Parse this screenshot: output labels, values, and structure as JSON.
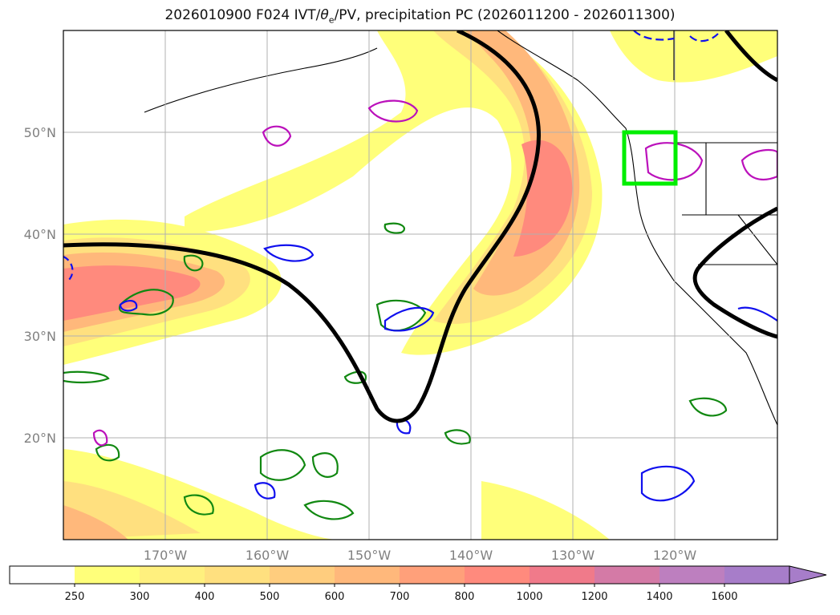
{
  "title": {
    "prefix": "2026010900 F024 IVT/",
    "theta": "θ",
    "theta_sub": "e",
    "suffix": "/PV, precipitation PC (2026011200 - 2026011300)"
  },
  "map": {
    "projection": "lat-lon",
    "lon_range": [
      -180,
      -110
    ],
    "lat_range": [
      10,
      60
    ],
    "lon_ticks": [
      "170°W",
      "160°W",
      "150°W",
      "140°W",
      "130°W",
      "120°W"
    ],
    "lat_ticks": [
      "50°N",
      "40°N",
      "30°N",
      "20°N"
    ],
    "grid": true,
    "highlight_box": {
      "color": "#00ee00",
      "lon": [
        -125,
        -120
      ],
      "lat": [
        45,
        50
      ]
    }
  },
  "colorbar": {
    "levels": [
      "250",
      "300",
      "400",
      "500",
      "600",
      "700",
      "800",
      "1000",
      "1200",
      "1400",
      "1600"
    ],
    "colors": [
      "#ffffff",
      "#ffff7a",
      "#fff07e",
      "#ffe07f",
      "#ffcd7e",
      "#ffb87b",
      "#ffa07a",
      "#ff8a7d",
      "#f07a8a",
      "#d47aa6",
      "#bd7fbf",
      "#a77dc9"
    ],
    "extend": "max"
  }
}
